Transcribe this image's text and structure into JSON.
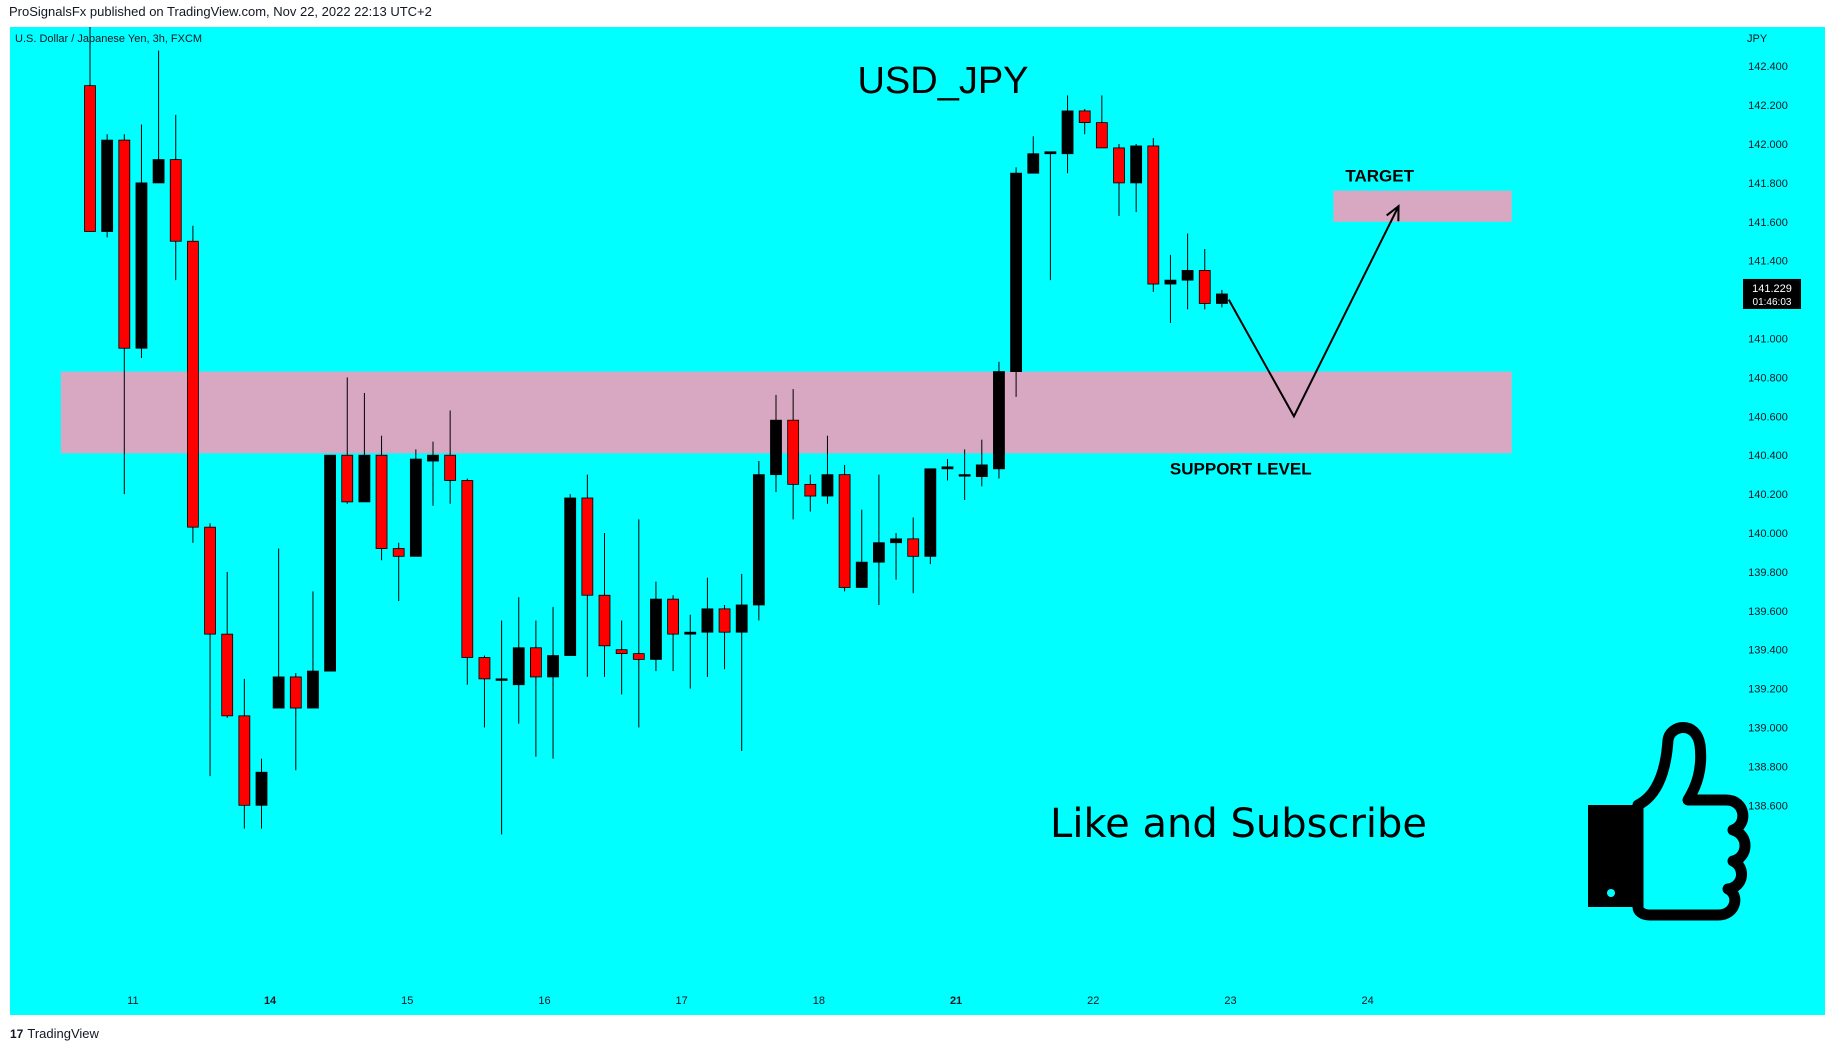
{
  "header": {
    "published_line": "ProSignalsFx published on TradingView.com, Nov 22, 2022 22:13 UTC+2"
  },
  "footer": {
    "logo_glyph": "17",
    "brand": "TradingView"
  },
  "colors": {
    "background": "#00ffff",
    "bull_candle": "#000000",
    "bear_candle": "#ff0000",
    "zone_fill": "#d8a8c2"
  },
  "chart_data": {
    "type": "candlestick",
    "title": "USD_JPY",
    "instrument_label": "U.S. Dollar / Japanese Yen, 3h, FXCM",
    "currency_label": "JPY",
    "ylim": [
      138.4,
      142.5
    ],
    "y_ticks": [
      "142.400",
      "142.200",
      "142.000",
      "141.800",
      "141.600",
      "141.400",
      "141.200",
      "141.000",
      "140.800",
      "140.600",
      "140.400",
      "140.200",
      "140.000",
      "139.800",
      "139.600",
      "139.400",
      "139.200",
      "139.000",
      "138.800",
      "138.600"
    ],
    "x_ticks": [
      {
        "label": "11",
        "bold": false,
        "index": 2.5
      },
      {
        "label": "14",
        "bold": true,
        "index": 10.5
      },
      {
        "label": "15",
        "bold": false,
        "index": 18.5
      },
      {
        "label": "16",
        "bold": false,
        "index": 26.5
      },
      {
        "label": "17",
        "bold": false,
        "index": 34.5
      },
      {
        "label": "18",
        "bold": false,
        "index": 42.5
      },
      {
        "label": "21",
        "bold": true,
        "index": 50.5
      },
      {
        "label": "22",
        "bold": false,
        "index": 58.5
      },
      {
        "label": "23",
        "bold": false,
        "index": 66.5
      },
      {
        "label": "24",
        "bold": false,
        "index": 74.5
      }
    ],
    "candles": [
      {
        "o": 142.3,
        "h": 142.9,
        "l": 141.55,
        "c": 141.55
      },
      {
        "o": 141.55,
        "h": 142.05,
        "l": 141.52,
        "c": 142.02
      },
      {
        "o": 142.02,
        "h": 142.05,
        "l": 140.2,
        "c": 140.95
      },
      {
        "o": 140.95,
        "h": 142.1,
        "l": 140.9,
        "c": 141.8
      },
      {
        "o": 141.8,
        "h": 142.48,
        "l": 141.8,
        "c": 141.92
      },
      {
        "o": 141.92,
        "h": 142.15,
        "l": 141.3,
        "c": 141.5
      },
      {
        "o": 141.5,
        "h": 141.58,
        "l": 139.95,
        "c": 140.03
      },
      {
        "o": 140.03,
        "h": 140.05,
        "l": 138.75,
        "c": 139.48
      },
      {
        "o": 139.48,
        "h": 139.8,
        "l": 139.05,
        "c": 139.06
      },
      {
        "o": 139.06,
        "h": 139.25,
        "l": 138.48,
        "c": 138.6
      },
      {
        "o": 138.6,
        "h": 138.84,
        "l": 138.48,
        "c": 138.77
      },
      {
        "o": 139.1,
        "h": 139.92,
        "l": 139.1,
        "c": 139.26
      },
      {
        "o": 139.26,
        "h": 139.28,
        "l": 138.78,
        "c": 139.1
      },
      {
        "o": 139.1,
        "h": 139.7,
        "l": 139.1,
        "c": 139.29
      },
      {
        "o": 139.29,
        "h": 140.4,
        "l": 139.29,
        "c": 140.4
      },
      {
        "o": 140.4,
        "h": 140.8,
        "l": 140.15,
        "c": 140.16
      },
      {
        "o": 140.16,
        "h": 140.72,
        "l": 140.16,
        "c": 140.4
      },
      {
        "o": 140.4,
        "h": 140.5,
        "l": 139.86,
        "c": 139.92
      },
      {
        "o": 139.92,
        "h": 139.95,
        "l": 139.65,
        "c": 139.88
      },
      {
        "o": 139.88,
        "h": 140.43,
        "l": 139.88,
        "c": 140.38
      },
      {
        "o": 140.37,
        "h": 140.47,
        "l": 140.14,
        "c": 140.4
      },
      {
        "o": 140.4,
        "h": 140.63,
        "l": 140.15,
        "c": 140.27
      },
      {
        "o": 140.27,
        "h": 140.28,
        "l": 139.22,
        "c": 139.36
      },
      {
        "o": 139.36,
        "h": 139.37,
        "l": 139.0,
        "c": 139.25
      },
      {
        "o": 139.25,
        "h": 139.55,
        "l": 138.45,
        "c": 139.25
      },
      {
        "o": 139.22,
        "h": 139.67,
        "l": 139.02,
        "c": 139.41
      },
      {
        "o": 139.41,
        "h": 139.55,
        "l": 138.85,
        "c": 139.26
      },
      {
        "o": 139.26,
        "h": 139.62,
        "l": 138.84,
        "c": 139.37
      },
      {
        "o": 139.37,
        "h": 140.2,
        "l": 139.37,
        "c": 140.18
      },
      {
        "o": 140.18,
        "h": 140.3,
        "l": 139.26,
        "c": 139.68
      },
      {
        "o": 139.68,
        "h": 140.0,
        "l": 139.26,
        "c": 139.42
      },
      {
        "o": 139.4,
        "h": 139.55,
        "l": 139.17,
        "c": 139.38
      },
      {
        "o": 139.38,
        "h": 140.07,
        "l": 139.0,
        "c": 139.35
      },
      {
        "o": 139.35,
        "h": 139.75,
        "l": 139.29,
        "c": 139.66
      },
      {
        "o": 139.66,
        "h": 139.68,
        "l": 139.29,
        "c": 139.48
      },
      {
        "o": 139.48,
        "h": 139.58,
        "l": 139.2,
        "c": 139.49
      },
      {
        "o": 139.49,
        "h": 139.77,
        "l": 139.26,
        "c": 139.61
      },
      {
        "o": 139.61,
        "h": 139.63,
        "l": 139.3,
        "c": 139.49
      },
      {
        "o": 139.49,
        "h": 139.79,
        "l": 138.88,
        "c": 139.63
      },
      {
        "o": 139.63,
        "h": 140.37,
        "l": 139.55,
        "c": 140.3
      },
      {
        "o": 140.3,
        "h": 140.71,
        "l": 140.21,
        "c": 140.58
      },
      {
        "o": 140.58,
        "h": 140.74,
        "l": 140.07,
        "c": 140.25
      },
      {
        "o": 140.25,
        "h": 140.3,
        "l": 140.11,
        "c": 140.19
      },
      {
        "o": 140.19,
        "h": 140.5,
        "l": 140.15,
        "c": 140.3
      },
      {
        "o": 140.3,
        "h": 140.35,
        "l": 139.7,
        "c": 139.72
      },
      {
        "o": 139.72,
        "h": 140.12,
        "l": 139.72,
        "c": 139.85
      },
      {
        "o": 139.85,
        "h": 140.3,
        "l": 139.63,
        "c": 139.95
      },
      {
        "o": 139.95,
        "h": 140.0,
        "l": 139.76,
        "c": 139.97
      },
      {
        "o": 139.97,
        "h": 140.08,
        "l": 139.69,
        "c": 139.88
      },
      {
        "o": 139.88,
        "h": 140.33,
        "l": 139.84,
        "c": 140.33
      },
      {
        "o": 140.33,
        "h": 140.38,
        "l": 140.27,
        "c": 140.34
      },
      {
        "o": 140.3,
        "h": 140.43,
        "l": 140.17,
        "c": 140.3
      },
      {
        "o": 140.29,
        "h": 140.48,
        "l": 140.24,
        "c": 140.35
      },
      {
        "o": 140.33,
        "h": 140.88,
        "l": 140.28,
        "c": 140.83
      },
      {
        "o": 140.83,
        "h": 141.88,
        "l": 140.7,
        "c": 141.85
      },
      {
        "o": 141.85,
        "h": 142.04,
        "l": 141.85,
        "c": 141.95
      },
      {
        "o": 141.95,
        "h": 141.96,
        "l": 141.3,
        "c": 141.96
      },
      {
        "o": 141.95,
        "h": 142.25,
        "l": 141.85,
        "c": 142.17
      },
      {
        "o": 142.17,
        "h": 142.18,
        "l": 142.05,
        "c": 142.11
      },
      {
        "o": 142.11,
        "h": 142.25,
        "l": 141.98,
        "c": 141.98
      },
      {
        "o": 141.98,
        "h": 142.0,
        "l": 141.63,
        "c": 141.8
      },
      {
        "o": 141.8,
        "h": 142.0,
        "l": 141.65,
        "c": 141.99
      },
      {
        "o": 141.99,
        "h": 142.03,
        "l": 141.24,
        "c": 141.28
      },
      {
        "o": 141.28,
        "h": 141.43,
        "l": 141.08,
        "c": 141.3
      },
      {
        "o": 141.3,
        "h": 141.54,
        "l": 141.15,
        "c": 141.35
      },
      {
        "o": 141.35,
        "h": 141.46,
        "l": 141.15,
        "c": 141.18
      },
      {
        "o": 141.18,
        "h": 141.25,
        "l": 141.16,
        "c": 141.229
      }
    ],
    "zones": [
      {
        "label": "SUPPORT LEVEL",
        "y0": 140.41,
        "y1": 140.83,
        "x0": -1.7,
        "x1": 82.9
      },
      {
        "label": "TARGET",
        "y0": 141.6,
        "y1": 141.76,
        "x0": 72.5,
        "x1": 82.9
      }
    ],
    "projection": [
      {
        "x": 66.4,
        "y": 141.2
      },
      {
        "x": 70.2,
        "y": 140.6
      },
      {
        "x": 76.3,
        "y": 141.68
      }
    ],
    "current_price": {
      "value": "141.229",
      "countdown": "01:46:03"
    },
    "callout_text": "Like and Subscribe"
  }
}
